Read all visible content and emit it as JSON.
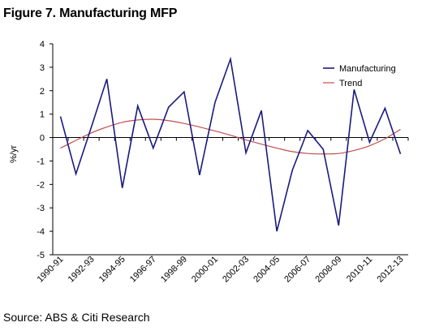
{
  "header": {
    "title": "Figure 7. Manufacturing MFP"
  },
  "footer": {
    "source": "Source: ABS & Citi Research"
  },
  "chart_data": {
    "type": "line",
    "title": "Figure 7. Manufacturing MFP",
    "xlabel": "",
    "ylabel": "%/yr",
    "ylim": [
      -5,
      4
    ],
    "yticks": [
      4,
      3,
      2,
      1,
      0,
      -1,
      -2,
      -3,
      -4,
      -5
    ],
    "x": [
      "1990-91",
      "1991-92",
      "1992-93",
      "1993-94",
      "1994-95",
      "1995-96",
      "1996-97",
      "1997-98",
      "1998-99",
      "1999-00",
      "2000-01",
      "2001-02",
      "2002-03",
      "2003-04",
      "2004-05",
      "2005-06",
      "2006-07",
      "2007-08",
      "2008-09",
      "2009-10",
      "2010-11",
      "2011-12",
      "2012-13"
    ],
    "xtick_labels": [
      "1990-91",
      "1992-93",
      "1994-95",
      "1996-97",
      "1998-99",
      "2000-01",
      "2002-03",
      "2004-05",
      "2006-07",
      "2008-09",
      "2010-11",
      "2012-13"
    ],
    "grid": false,
    "legend_position": "top-right",
    "series": [
      {
        "name": "Manufacturing",
        "color": "#1a1a80",
        "values": [
          0.9,
          -1.55,
          0.45,
          2.5,
          -2.15,
          1.35,
          -0.45,
          1.3,
          1.95,
          -1.6,
          1.5,
          3.35,
          -0.65,
          1.15,
          -4.0,
          -1.4,
          0.3,
          -0.5,
          -3.75,
          2.05,
          -0.2,
          1.25,
          -0.7
        ]
      },
      {
        "name": "Trend",
        "color": "#c0504d",
        "values": [
          -0.45,
          -0.12,
          0.2,
          0.45,
          0.65,
          0.75,
          0.78,
          0.72,
          0.6,
          0.45,
          0.28,
          0.1,
          -0.1,
          -0.28,
          -0.45,
          -0.6,
          -0.68,
          -0.7,
          -0.68,
          -0.55,
          -0.35,
          -0.05,
          0.35
        ]
      }
    ]
  }
}
